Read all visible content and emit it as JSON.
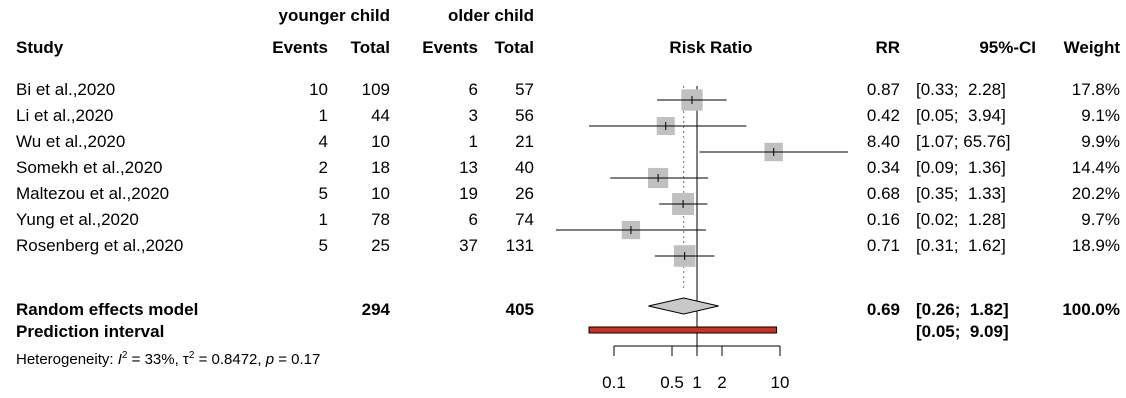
{
  "header": {
    "group1": "younger child",
    "group2": "older child",
    "study": "Study",
    "events1": "Events",
    "total1": "Total",
    "events2": "Events",
    "total2": "Total",
    "plot_title": "Risk Ratio",
    "rr": "RR",
    "ci": "95%-CI",
    "weight": "Weight"
  },
  "studies": [
    {
      "name": "Bi et al.,2020",
      "events1": "10",
      "total1": "109",
      "events2": "6",
      "total2": "57",
      "rr_text": "0.87",
      "ci_text": "[0.33;  2.28]",
      "weight_text": "17.8%"
    },
    {
      "name": "Li et al.,2020",
      "events1": "1",
      "total1": "44",
      "events2": "3",
      "total2": "56",
      "rr_text": "0.42",
      "ci_text": "[0.05;  3.94]",
      "weight_text": "9.1%"
    },
    {
      "name": "Wu et al.,2020",
      "events1": "4",
      "total1": "10",
      "events2": "1",
      "total2": "21",
      "rr_text": "8.40",
      "ci_text": "[1.07; 65.76]",
      "weight_text": "9.9%"
    },
    {
      "name": "Somekh et al.,2020",
      "events1": "2",
      "total1": "18",
      "events2": "13",
      "total2": "40",
      "rr_text": "0.34",
      "ci_text": "[0.09;  1.36]",
      "weight_text": "14.4%"
    },
    {
      "name": "Maltezou et al.,2020",
      "events1": "5",
      "total1": "10",
      "events2": "19",
      "total2": "26",
      "rr_text": "0.68",
      "ci_text": "[0.35;  1.33]",
      "weight_text": "20.2%"
    },
    {
      "name": "Yung et al.,2020",
      "events1": "1",
      "total1": "78",
      "events2": "6",
      "total2": "74",
      "rr_text": "0.16",
      "ci_text": "[0.02;  1.28]",
      "weight_text": "9.7%"
    },
    {
      "name": "Rosenberg et al.,2020",
      "events1": "5",
      "total1": "25",
      "events2": "37",
      "total2": "131",
      "rr_text": "0.71",
      "ci_text": "[0.31;  1.62]",
      "weight_text": "18.9%"
    }
  ],
  "summary": {
    "model_label": "Random effects model",
    "total1": "294",
    "total2": "405",
    "rr_text": "0.69",
    "ci_text": "[0.26;  1.82]",
    "weight_text": "100.0%",
    "prediction_label": "Prediction interval",
    "prediction_ci_text": "[0.05;  9.09]",
    "heterogeneity": {
      "prefix": "Heterogeneity: ",
      "i2_symbol": "I",
      "i2_sup": "2",
      "i2_value": " = 33%, ",
      "tau_symbol": "τ",
      "tau_sup": "2",
      "tau_value": " = 0.8472, ",
      "p_symbol": "p",
      "p_value": " = 0.17"
    }
  },
  "chart_data": {
    "type": "forest",
    "title": "Risk Ratio",
    "x_scale": "log",
    "x_ticks": [
      0.1,
      0.5,
      1,
      2,
      10
    ],
    "x_tick_labels": [
      "0.1",
      "0.5",
      "1",
      "2",
      "10"
    ],
    "xlim": [
      0.1,
      10
    ],
    "null_value": 1,
    "studies": [
      {
        "rr": 0.87,
        "lo": 0.33,
        "hi": 2.28,
        "weight": 17.8
      },
      {
        "rr": 0.42,
        "lo": 0.05,
        "hi": 3.94,
        "weight": 9.1
      },
      {
        "rr": 8.4,
        "lo": 1.07,
        "hi": 65.76,
        "weight": 9.9
      },
      {
        "rr": 0.34,
        "lo": 0.09,
        "hi": 1.36,
        "weight": 14.4
      },
      {
        "rr": 0.68,
        "lo": 0.35,
        "hi": 1.33,
        "weight": 20.2
      },
      {
        "rr": 0.16,
        "lo": 0.02,
        "hi": 1.28,
        "weight": 9.7
      },
      {
        "rr": 0.71,
        "lo": 0.31,
        "hi": 1.62,
        "weight": 18.9
      }
    ],
    "pooled": {
      "rr": 0.69,
      "lo": 0.26,
      "hi": 1.82
    },
    "prediction_interval": {
      "lo": 0.05,
      "hi": 9.09
    },
    "colors": {
      "square": "#c0c0c0",
      "line": "#000000",
      "diamond": "#c8c8c8",
      "prediction": "#c8321e",
      "reference_dotted": "#888888"
    }
  }
}
